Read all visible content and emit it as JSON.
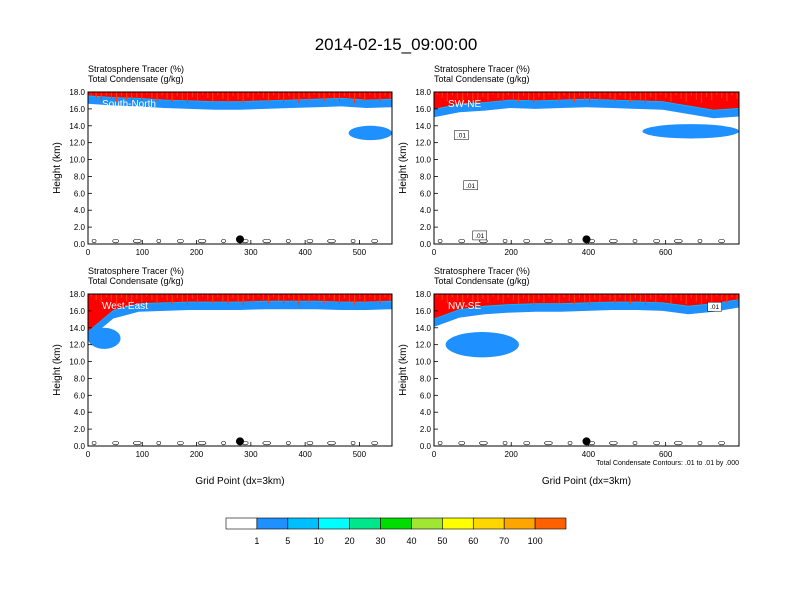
{
  "title": "2014-02-15_09:00:00",
  "chart_data": {
    "type": "heatmap",
    "panels": [
      {
        "label": "South-North",
        "headers": [
          "Stratosphere Tracer   (%)",
          "Total Condensate   (g/kg)"
        ],
        "xlim": [
          0,
          560
        ],
        "xticks": [
          0,
          100,
          200,
          300,
          400,
          500
        ],
        "ylim": [
          0,
          18
        ],
        "yticks": [
          "0.0",
          "2.0",
          "4.0",
          "6.0",
          "8.0",
          "10.0",
          "12.0",
          "14.0",
          "16.0",
          "18.0"
        ],
        "ylabel": "Height (km)",
        "xlabel": "",
        "marker_x": 280,
        "tracer_base_km": [
          16.0,
          15.8,
          15.7,
          15.5,
          15.4,
          15.3,
          15.3,
          15.4,
          15.5,
          15.6,
          15.7,
          15.5,
          15.6
        ],
        "blue_patch": {
          "x": [
            480,
            560
          ],
          "y": [
            12.3,
            14.0
          ]
        }
      },
      {
        "label": "SW-NE",
        "headers": [
          "Stratosphere Tracer   (%)",
          "Total Condensate   (g/kg)"
        ],
        "xlim": [
          0,
          790
        ],
        "xticks": [
          0,
          200,
          400,
          600
        ],
        "ylim": [
          0,
          18
        ],
        "yticks": [
          "0.0",
          "2.0",
          "4.0",
          "6.0",
          "8.0",
          "10.0",
          "12.0",
          "14.0",
          "16.0",
          "18.0"
        ],
        "ylabel": "Height (km)",
        "xlabel": "",
        "marker_x": 395,
        "contour_labels": [
          ".01",
          ".01",
          ".01"
        ],
        "tracer_base_km": [
          14.4,
          15.0,
          15.2,
          15.5,
          15.4,
          15.5,
          15.6,
          15.5,
          15.4,
          15.3,
          14.8,
          14.3,
          14.5
        ],
        "blue_patch": {
          "x": [
            540,
            790
          ],
          "y": [
            12.5,
            14.2
          ]
        }
      },
      {
        "label": "West-East",
        "headers": [
          "Stratosphere Tracer   (%)",
          "Total Condensate   (g/kg)"
        ],
        "xlim": [
          0,
          560
        ],
        "xticks": [
          0,
          100,
          200,
          300,
          400,
          500
        ],
        "ylim": [
          0,
          18
        ],
        "yticks": [
          "0.0",
          "2.0",
          "4.0",
          "6.0",
          "8.0",
          "10.0",
          "12.0",
          "14.0",
          "16.0",
          "18.0"
        ],
        "ylabel": "Height (km)",
        "xlabel": "Grid Point (dx=3km)",
        "marker_x": 280,
        "tracer_base_km": [
          12.0,
          14.5,
          15.3,
          15.4,
          15.5,
          15.5,
          15.5,
          15.6,
          15.6,
          15.6,
          15.5,
          15.5,
          15.6
        ],
        "blue_patch": {
          "x": [
            0,
            60
          ],
          "y": [
            11.5,
            14.0
          ]
        }
      },
      {
        "label": "NW-SE",
        "headers": [
          "Stratosphere Tracer   (%)",
          "Total Condensate   (g/kg)"
        ],
        "xlim": [
          0,
          790
        ],
        "xticks": [
          0,
          200,
          400,
          600
        ],
        "ylim": [
          0,
          18
        ],
        "yticks": [
          "0.0",
          "2.0",
          "4.0",
          "6.0",
          "8.0",
          "10.0",
          "12.0",
          "14.0",
          "16.0",
          "18.0"
        ],
        "ylabel": "Height (km)",
        "xlabel": "Grid Point (dx=3km)",
        "marker_x": 395,
        "contour_labels": [
          ".01"
        ],
        "note": "Total Condensate Contours: .01 to .01 by .000",
        "tracer_base_km": [
          13.5,
          14.6,
          15.0,
          15.2,
          15.3,
          15.3,
          15.4,
          15.5,
          15.5,
          15.4,
          15.0,
          15.3,
          15.8
        ],
        "blue_patch": {
          "x": [
            30,
            220
          ],
          "y": [
            10.5,
            13.5
          ]
        }
      }
    ],
    "colorbar": {
      "levels": [
        "1",
        "5",
        "10",
        "20",
        "30",
        "40",
        "50",
        "60",
        "70",
        "100"
      ],
      "colors": [
        "#ffffff",
        "#1e90ff",
        "#00bfff",
        "#00ffff",
        "#00e68a",
        "#00dd00",
        "#a0e632",
        "#ffff00",
        "#ffd700",
        "#ffa500",
        "#ff6000",
        "#ff0000"
      ]
    }
  }
}
